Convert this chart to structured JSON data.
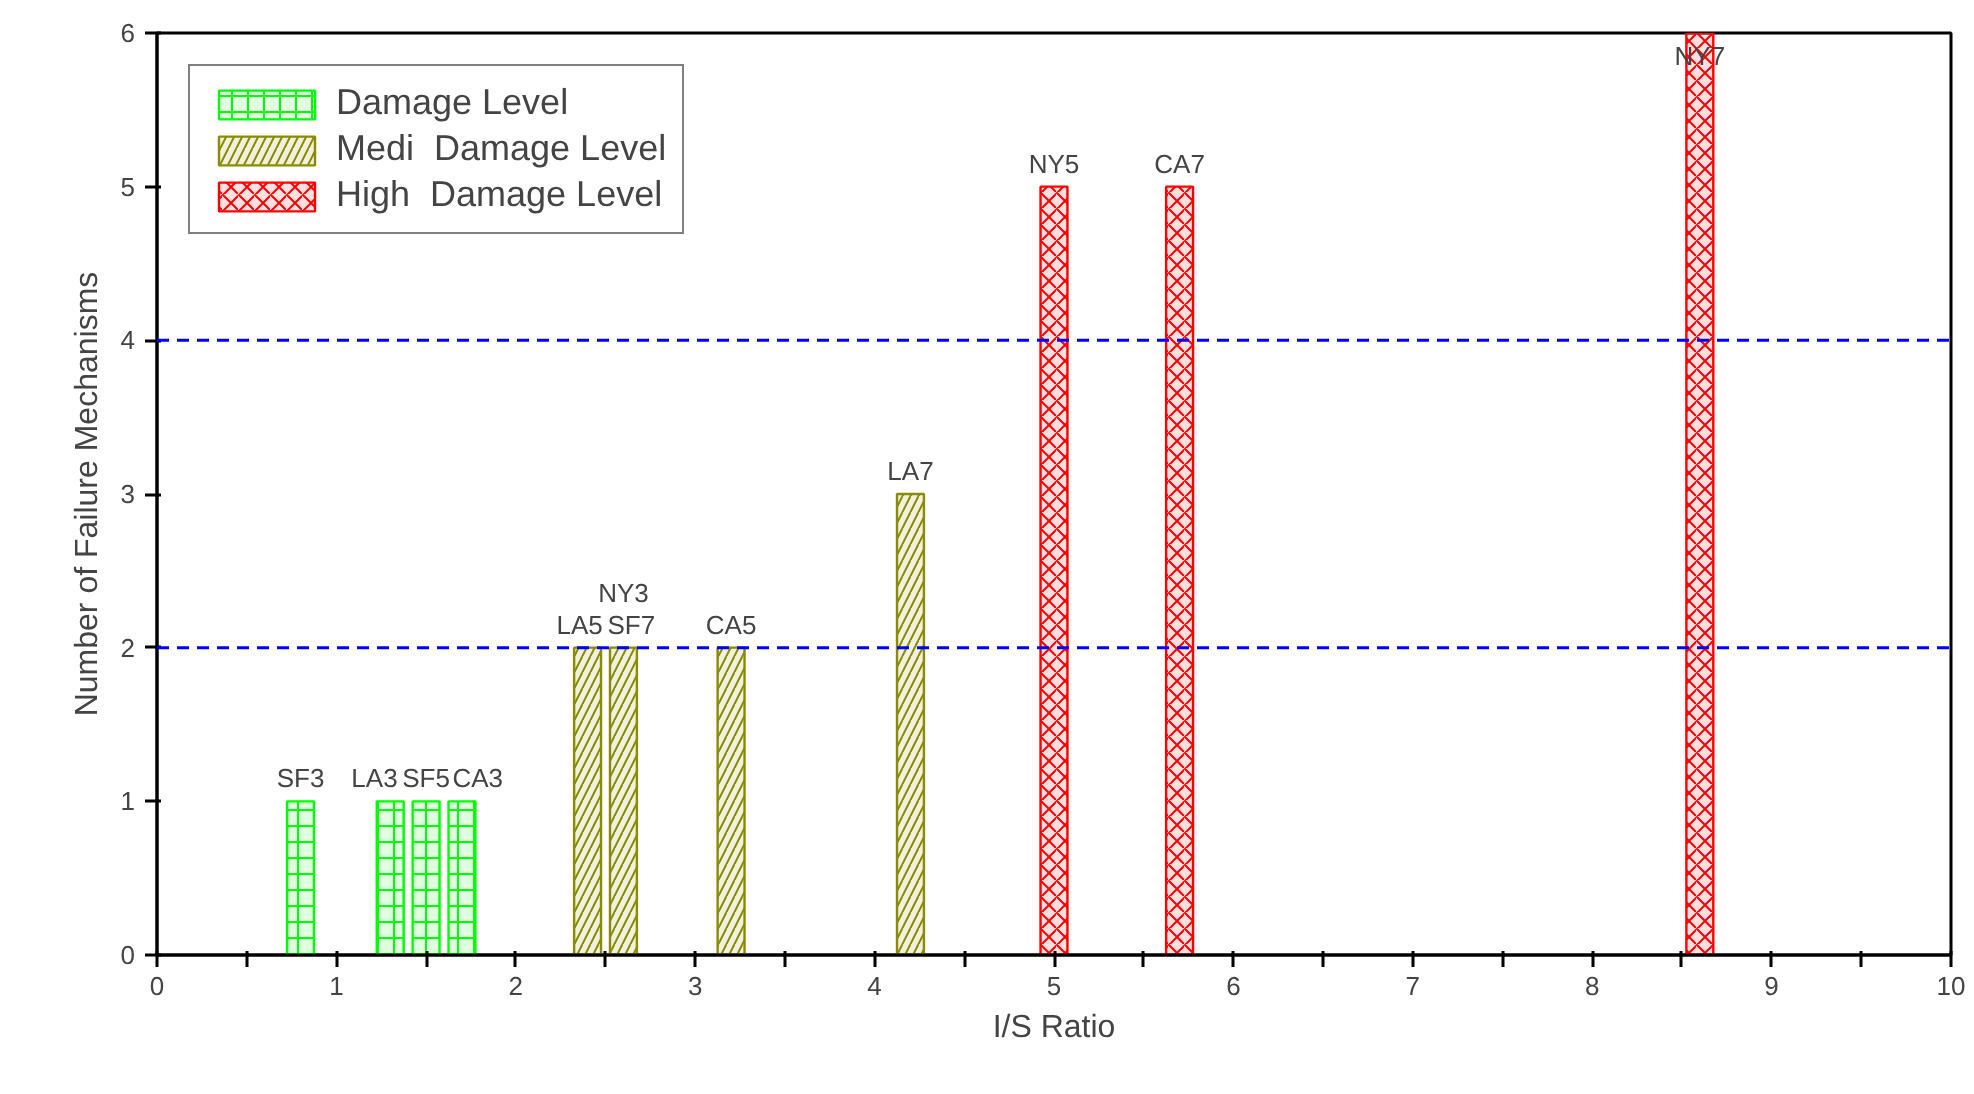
{
  "chart_data": {
    "type": "bar",
    "xlabel": "I/S Ratio",
    "ylabel": "Number of Failure Mechanisms",
    "series": [
      {
        "name": "Damage Level",
        "color": "#00ff00",
        "x": [
          0.8,
          1.3,
          1.5,
          1.7
        ],
        "values": [
          1,
          1,
          1,
          1
        ]
      },
      {
        "name": "Medi  Damage Level",
        "color": "#8b8b00",
        "x": [
          2.4,
          2.6,
          3.2,
          4.2
        ],
        "values": [
          2,
          2,
          2,
          3
        ]
      },
      {
        "name": "High  Damage Level",
        "color": "#ff0000",
        "x": [
          5.0,
          5.7,
          8.6
        ],
        "values": [
          5,
          5,
          6
        ]
      }
    ],
    "annotations": [
      {
        "text": "SF3",
        "x": 0.8,
        "y": 1
      },
      {
        "text": "LA3",
        "x": 1.3,
        "y": 1
      },
      {
        "text": "SF5",
        "x": 1.5,
        "y": 1
      },
      {
        "text": "CA3",
        "x": 1.7,
        "y": 1
      },
      {
        "text": "SF7",
        "x": 2.6,
        "y": 2
      },
      {
        "text": "NY3",
        "x": 2.6,
        "y": 2
      },
      {
        "text": "LA5",
        "x": 2.4,
        "y": 2
      },
      {
        "text": "CA5",
        "x": 3.2,
        "y": 2
      },
      {
        "text": "LA7",
        "x": 4.2,
        "y": 3
      },
      {
        "text": "NY5",
        "x": 5.0,
        "y": 5
      },
      {
        "text": "CA7",
        "x": 5.7,
        "y": 5
      },
      {
        "text": "NY7",
        "x": 8.6,
        "y": 6
      }
    ],
    "ref_lines": [
      {
        "axis": "y",
        "value": 2,
        "color": "#0000ff",
        "line_style": "dashed"
      },
      {
        "axis": "y",
        "value": 4,
        "color": "#0000ff",
        "line_style": "dashed"
      }
    ],
    "xlim": [
      0,
      10
    ],
    "ylim": [
      0,
      6
    ],
    "xticks": [
      0,
      {
        "value": 0.5,
        "label": null
      },
      1,
      {
        "value": 1.5,
        "label": null
      },
      2,
      {
        "value": 2.5,
        "label": null
      },
      3,
      {
        "value": 3.5,
        "label": null
      },
      4,
      {
        "value": 4.5,
        "label": null
      },
      5,
      {
        "value": 5.5,
        "label": null
      },
      6,
      {
        "value": 6.5,
        "label": null
      },
      7,
      {
        "value": 7.5,
        "label": null
      },
      8,
      {
        "value": 8.5,
        "label": null
      },
      9,
      {
        "value": 9.5,
        "label": null
      },
      10
    ],
    "yticks": [
      0,
      1,
      2,
      3,
      4,
      5,
      6
    ],
    "grid": false,
    "legend": "top left"
  }
}
